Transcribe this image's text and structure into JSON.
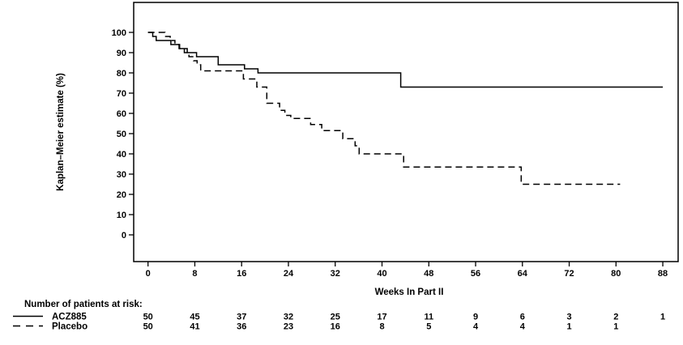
{
  "page": {
    "background": "#ffffff",
    "foreground": "#000000"
  },
  "chart_data": {
    "type": "line",
    "subtype": "kaplan-meier-step-curves",
    "title": "",
    "xlabel": "Weeks In Part II",
    "ylabel": "Kaplan–Meier estimate (%)",
    "xlim": [
      0,
      88
    ],
    "ylim": [
      0,
      100
    ],
    "x_ticks": [
      0,
      8,
      16,
      24,
      32,
      40,
      48,
      56,
      64,
      72,
      80,
      88
    ],
    "y_ticks": [
      0,
      10,
      20,
      30,
      40,
      50,
      60,
      70,
      80,
      90,
      100
    ],
    "grid": false,
    "legend_position": "bottom-left",
    "line_color": "#000000",
    "series": [
      {
        "name": "ACZ885",
        "line_style": "solid",
        "end_week": 88,
        "steps": [
          [
            0,
            100
          ],
          [
            0.8,
            98
          ],
          [
            1.4,
            96
          ],
          [
            3.9,
            94
          ],
          [
            5.3,
            92
          ],
          [
            6.7,
            90
          ],
          [
            8.3,
            88
          ],
          [
            12,
            84
          ],
          [
            16.5,
            82
          ],
          [
            18.8,
            80
          ],
          [
            43.2,
            73
          ]
        ]
      },
      {
        "name": "Placebo",
        "line_style": "dashed",
        "end_week": 80.7,
        "steps": [
          [
            0,
            100
          ],
          [
            2.9,
            98
          ],
          [
            3.8,
            96
          ],
          [
            4.6,
            94
          ],
          [
            5.4,
            92
          ],
          [
            6.2,
            90
          ],
          [
            7,
            88
          ],
          [
            7.8,
            86
          ],
          [
            8.4,
            84
          ],
          [
            9,
            81
          ],
          [
            16.3,
            77
          ],
          [
            18.6,
            73
          ],
          [
            20.3,
            65
          ],
          [
            22.5,
            61.5
          ],
          [
            23.4,
            59
          ],
          [
            24.4,
            57.5
          ],
          [
            27.8,
            54.5
          ],
          [
            29.7,
            51.5
          ],
          [
            33.3,
            47.5
          ],
          [
            35.4,
            44
          ],
          [
            36.1,
            40
          ],
          [
            43.7,
            33.5
          ],
          [
            63.8,
            25
          ]
        ]
      }
    ],
    "risk_table": {
      "label": "Number of patients at risk:",
      "ticks": [
        0,
        8,
        16,
        24,
        32,
        40,
        48,
        56,
        64,
        72,
        80,
        88
      ],
      "rows": [
        {
          "name": "ACZ885",
          "counts": [
            "50",
            "45",
            "37",
            "32",
            "25",
            "17",
            "11",
            "9",
            "6",
            "3",
            "2",
            "1"
          ]
        },
        {
          "name": "Placebo",
          "counts": [
            "50",
            "41",
            "36",
            "23",
            "16",
            "8",
            "5",
            "4",
            "4",
            "1",
            "1",
            ""
          ]
        }
      ]
    }
  }
}
